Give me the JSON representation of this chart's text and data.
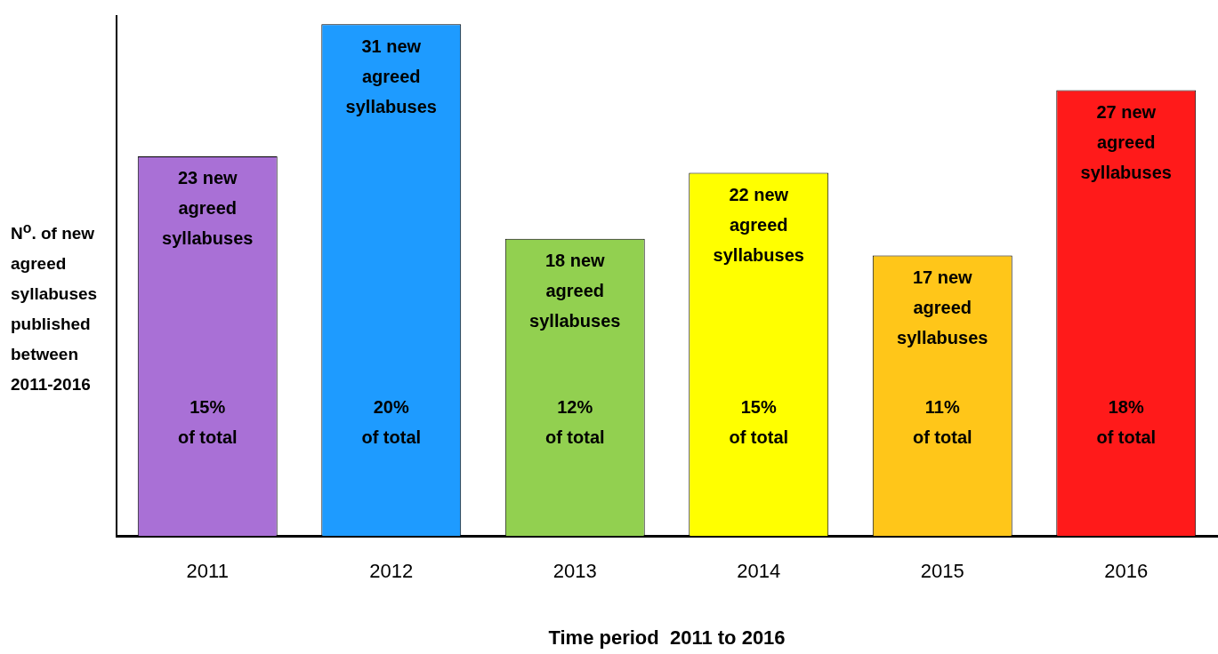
{
  "chart_data": {
    "type": "bar",
    "xlabel": "Time period  2011 to 2016",
    "ylabel": "N$^{o}$. of new agreed syllabuses published between 2011-2016",
    "categories": [
      "2011",
      "2012",
      "2013",
      "2014",
      "2015",
      "2016"
    ],
    "values": [
      23,
      31,
      18,
      22,
      17,
      27
    ],
    "colors": [
      "#a970d6",
      "#1e9bff",
      "#92d050",
      "#ffff00",
      "#ffc619",
      "#ff1a1a"
    ],
    "value_labels": [
      "23 new agreed syllabuses",
      "31 new agreed syllabuses",
      "18 new agreed syllabuses",
      "22 new agreed syllabuses",
      "17 new agreed syllabuses",
      "27 new agreed syllabuses"
    ],
    "annotations": [
      "15% of total",
      "20% of total",
      "12% of total",
      "15% of total",
      "11% of total",
      "18% of total"
    ],
    "ylim": [
      0,
      31.5
    ],
    "tick_labels": "x",
    "grid": false,
    "legend": false
  }
}
